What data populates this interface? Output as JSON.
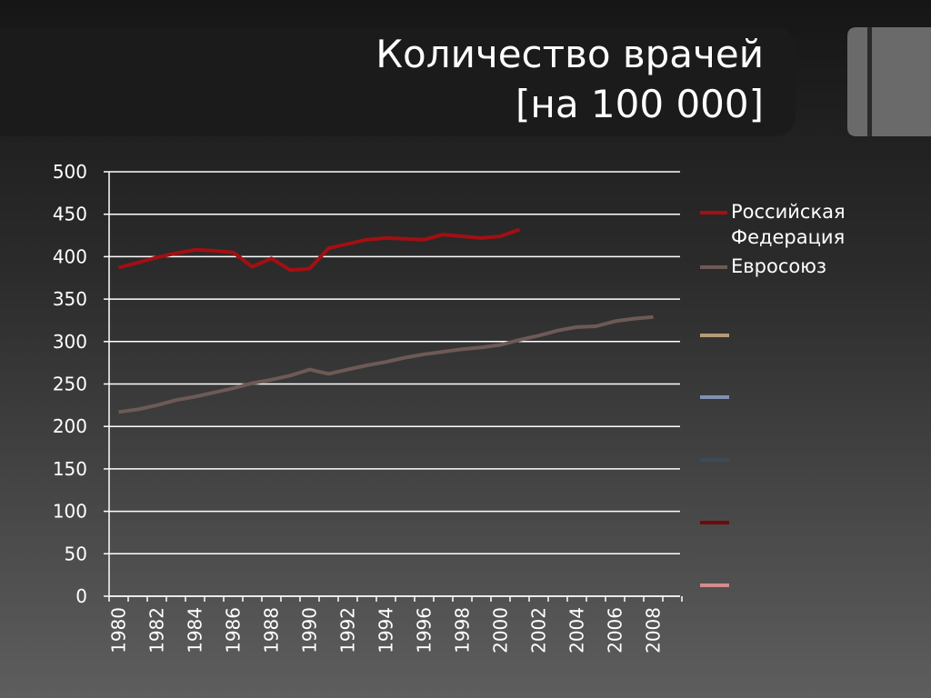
{
  "chart_data": {
    "type": "line",
    "title": "Количество врачей",
    "subtitle": "[на 100 000]",
    "categories": [
      "1980",
      null,
      "1982",
      null,
      "1984",
      null,
      "1986",
      null,
      "1988",
      null,
      "1990",
      null,
      "1992",
      null,
      "1994",
      null,
      "1996",
      null,
      "1998",
      null,
      "2000",
      null,
      "2002",
      null,
      "2004",
      null,
      "2006",
      null,
      "2008",
      null
    ],
    "series": [
      {
        "name": "Российская Федерация",
        "color": "#a30f12",
        "values": [
          387,
          393,
          399,
          404,
          408,
          407,
          405,
          388,
          398,
          384,
          386,
          410,
          415,
          420,
          422,
          421,
          420,
          426,
          424,
          422,
          424,
          432,
          null,
          null,
          null,
          null,
          null,
          null,
          null,
          null
        ]
      },
      {
        "name": "Евросоюз",
        "color": "#6e5a55",
        "values": [
          217,
          220,
          225,
          231,
          235,
          240,
          245,
          251,
          255,
          260,
          267,
          262,
          267,
          272,
          276,
          281,
          285,
          288,
          291,
          293,
          296,
          302,
          307,
          313,
          317,
          318,
          324,
          327,
          329,
          null
        ]
      }
    ],
    "ylim": [
      0,
      500
    ],
    "yticks": [
      0,
      50,
      100,
      150,
      200,
      250,
      300,
      350,
      400,
      450,
      500
    ],
    "grid": true,
    "legend": "right"
  }
}
